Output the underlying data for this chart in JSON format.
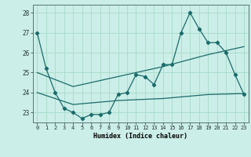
{
  "line1_x": [
    0,
    1,
    2,
    3,
    4,
    5,
    6,
    7,
    8,
    9,
    10,
    11,
    12,
    13,
    14,
    15,
    16,
    17,
    18,
    19,
    20,
    21,
    22,
    23
  ],
  "line1_y": [
    27.0,
    25.2,
    24.0,
    23.2,
    23.0,
    22.7,
    22.9,
    22.9,
    23.0,
    23.9,
    24.0,
    24.9,
    24.8,
    24.4,
    25.4,
    25.4,
    27.0,
    28.0,
    27.2,
    26.5,
    26.5,
    26.0,
    24.9,
    23.9
  ],
  "line2_x": [
    0,
    4,
    9,
    14,
    19,
    23
  ],
  "line2_y": [
    25.0,
    24.3,
    24.8,
    25.3,
    25.9,
    26.3
  ],
  "line3_x": [
    0,
    4,
    9,
    14,
    19,
    23
  ],
  "line3_y": [
    24.0,
    23.4,
    23.6,
    23.7,
    23.9,
    23.95
  ],
  "line_color": "#1a6b6b",
  "bg_color": "#cceee8",
  "grid_color": "#aaddcc",
  "xlabel": "Humidex (Indice chaleur)",
  "xlim": [
    -0.5,
    23.5
  ],
  "ylim": [
    22.5,
    28.4
  ],
  "yticks": [
    23,
    24,
    25,
    26,
    27,
    28
  ],
  "xticks": [
    0,
    1,
    2,
    3,
    4,
    5,
    6,
    7,
    8,
    9,
    10,
    11,
    12,
    13,
    14,
    15,
    16,
    17,
    18,
    19,
    20,
    21,
    22,
    23
  ]
}
